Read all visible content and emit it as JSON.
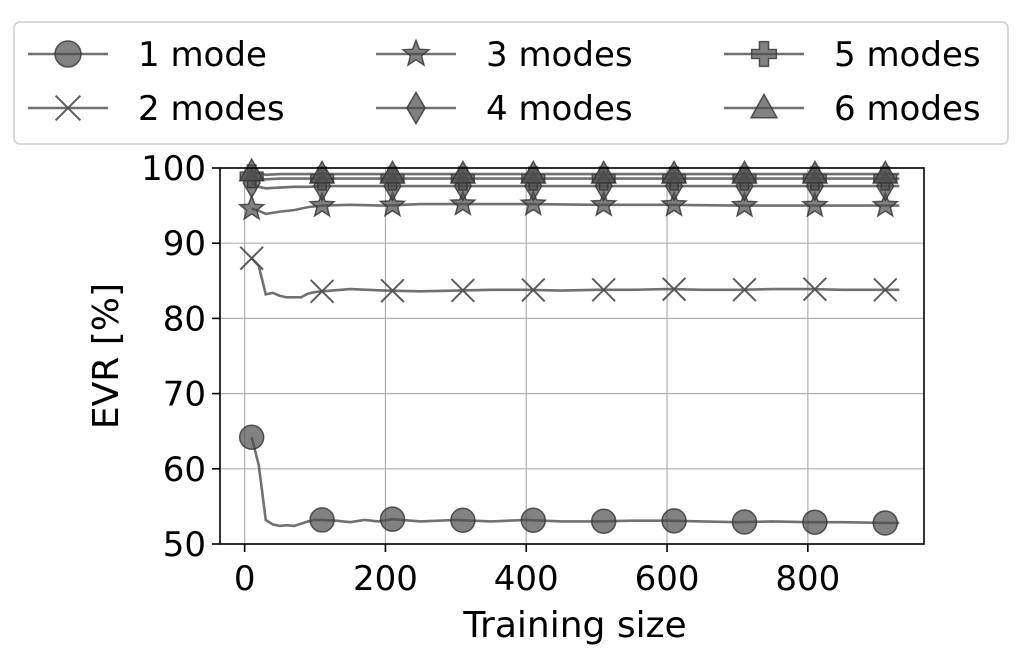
{
  "chart_data": {
    "type": "line",
    "xlabel": "Training size",
    "ylabel": "EVR [%]",
    "xlim": [
      -35,
      965
    ],
    "ylim": [
      50,
      100
    ],
    "xticks": [
      0,
      200,
      400,
      600,
      800
    ],
    "yticks": [
      50,
      60,
      70,
      80,
      90,
      100
    ],
    "grid": true,
    "legend_position": "top, outside plot, 3 columns",
    "line_color": "#4d4d4d",
    "marker_color": "#4d4d4d",
    "series": [
      {
        "name": "1 mode",
        "marker": "circle",
        "x": [
          10,
          20,
          30,
          40,
          50,
          60,
          70,
          80,
          90,
          100,
          110,
          130,
          150,
          170,
          190,
          210,
          250,
          300,
          350,
          400,
          450,
          500,
          550,
          600,
          650,
          700,
          750,
          800,
          850,
          910,
          930
        ],
        "y": [
          64.2,
          60.5,
          53.2,
          52.6,
          52.4,
          52.5,
          52.4,
          52.7,
          53.0,
          53.2,
          53.2,
          53.1,
          52.9,
          53.2,
          53.0,
          53.3,
          53.0,
          53.2,
          53.0,
          53.2,
          53.0,
          53.0,
          53.1,
          53.1,
          53.0,
          52.9,
          53.0,
          52.9,
          52.9,
          52.8,
          52.8
        ]
      },
      {
        "name": "2 modes",
        "marker": "x",
        "x": [
          10,
          20,
          30,
          40,
          50,
          60,
          70,
          80,
          90,
          100,
          110,
          150,
          200,
          250,
          300,
          350,
          400,
          450,
          500,
          550,
          600,
          650,
          700,
          750,
          800,
          850,
          910,
          930
        ],
        "y": [
          88.0,
          87.0,
          83.2,
          83.4,
          83.0,
          82.8,
          82.8,
          82.8,
          83.3,
          83.5,
          83.6,
          83.9,
          83.7,
          83.6,
          83.7,
          83.8,
          83.8,
          83.7,
          83.8,
          83.8,
          83.9,
          83.8,
          83.8,
          83.9,
          83.9,
          83.8,
          83.8,
          83.8
        ]
      },
      {
        "name": "3 modes",
        "marker": "star",
        "x": [
          10,
          20,
          30,
          50,
          70,
          90,
          110,
          150,
          200,
          250,
          300,
          400,
          500,
          600,
          700,
          800,
          910,
          930
        ],
        "y": [
          94.6,
          94.3,
          93.9,
          94.2,
          94.4,
          94.8,
          95.0,
          95.1,
          95.0,
          95.2,
          95.2,
          95.2,
          95.1,
          95.1,
          95.0,
          95.0,
          95.0,
          95.0
        ]
      },
      {
        "name": "4 modes",
        "marker": "diamond",
        "x": [
          10,
          20,
          30,
          50,
          70,
          90,
          110,
          150,
          200,
          250,
          300,
          400,
          500,
          600,
          700,
          800,
          910,
          930
        ],
        "y": [
          98.0,
          97.5,
          97.3,
          97.4,
          97.5,
          97.5,
          97.6,
          97.6,
          97.6,
          97.6,
          97.6,
          97.6,
          97.6,
          97.6,
          97.6,
          97.6,
          97.6,
          97.6
        ]
      },
      {
        "name": "5 modes",
        "marker": "plus",
        "x": [
          10,
          20,
          30,
          50,
          70,
          90,
          110,
          150,
          200,
          300,
          400,
          500,
          600,
          700,
          800,
          910,
          930
        ],
        "y": [
          98.9,
          98.6,
          98.5,
          98.6,
          98.6,
          98.6,
          98.6,
          98.6,
          98.6,
          98.6,
          98.6,
          98.6,
          98.6,
          98.6,
          98.6,
          98.6,
          98.6
        ]
      },
      {
        "name": "6 modes",
        "marker": "triangle",
        "x": [
          10,
          20,
          30,
          50,
          70,
          90,
          110,
          150,
          200,
          300,
          400,
          500,
          600,
          700,
          800,
          910,
          930
        ],
        "y": [
          99.5,
          99.3,
          99.1,
          99.2,
          99.2,
          99.2,
          99.2,
          99.2,
          99.2,
          99.2,
          99.2,
          99.2,
          99.2,
          99.2,
          99.2,
          99.2,
          99.2
        ]
      }
    ],
    "marker_x": [
      10,
      110,
      210,
      310,
      410,
      510,
      610,
      710,
      810,
      910
    ]
  }
}
